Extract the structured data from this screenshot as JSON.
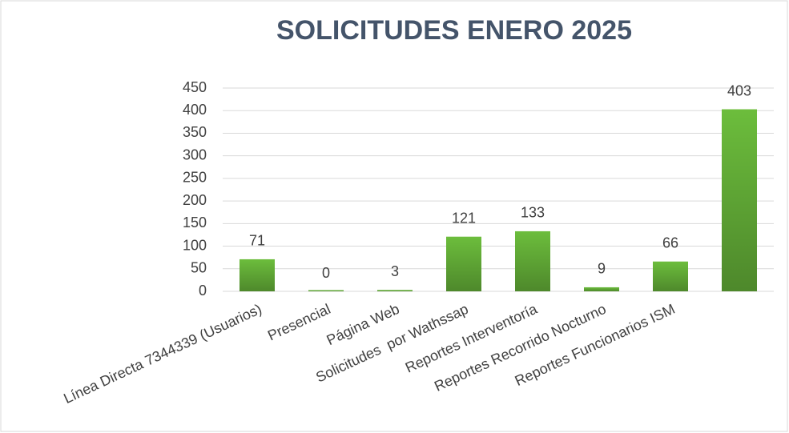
{
  "chart_data": {
    "type": "bar",
    "title": "SOLICITUDES ENERO 2025",
    "categories": [
      "Línea Directa 7344339 (Usuarios)",
      "Presencial",
      "Página Web",
      "Solicitudes  por Wathssap",
      "Reportes Interventoría",
      "Reportes Recorrido Nocturno",
      "Reportes Funcionarios ISM",
      null
    ],
    "values": [
      71,
      0,
      3,
      121,
      133,
      9,
      66,
      403
    ],
    "color": "#6cbd3c",
    "ylim": [
      0,
      450
    ],
    "yticks": [
      0,
      50,
      100,
      150,
      200,
      250,
      300,
      350,
      400,
      450
    ],
    "grid": true
  }
}
